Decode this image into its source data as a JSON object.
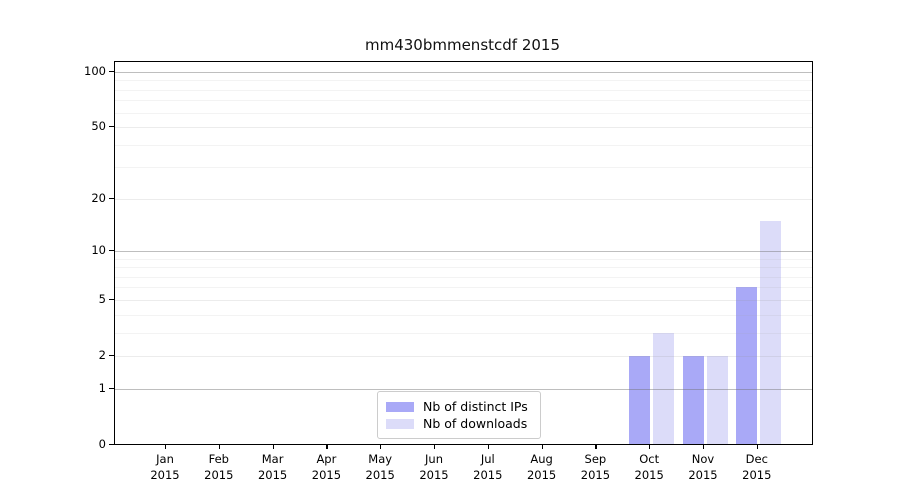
{
  "chart_data": {
    "type": "bar",
    "title": "mm430bmmenstcdf 2015",
    "xlabel": "",
    "ylabel": "",
    "scale": "log10(value+1)",
    "categories": [
      "Jan",
      "Feb",
      "Mar",
      "Apr",
      "May",
      "Jun",
      "Jul",
      "Aug",
      "Sep",
      "Oct",
      "Nov",
      "Dec"
    ],
    "year_label": "2015",
    "series": [
      {
        "name": "Nb of distinct IPs",
        "color": "#a9a9f7",
        "values": [
          0,
          0,
          0,
          0,
          0,
          0,
          0,
          0,
          0,
          2,
          2,
          6
        ]
      },
      {
        "name": "Nb of downloads",
        "color": "#dcdcf9",
        "values": [
          0,
          0,
          0,
          0,
          0,
          0,
          0,
          0,
          0,
          3,
          2,
          15
        ]
      }
    ],
    "yticks": [
      0,
      1,
      2,
      5,
      10,
      20,
      50,
      100
    ],
    "minor_yticks": [
      3,
      4,
      6,
      7,
      8,
      9,
      30,
      40,
      60,
      70,
      80,
      90
    ],
    "power_ticks": [
      1,
      10,
      100
    ],
    "ylim": [
      0,
      114
    ],
    "grid": "on",
    "legend_position": "lower center"
  }
}
